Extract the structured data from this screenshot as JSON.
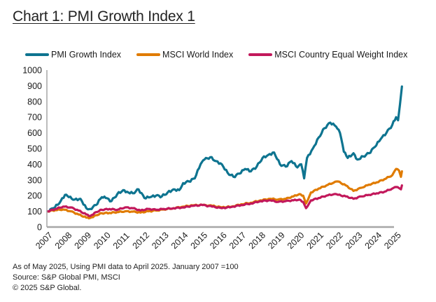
{
  "title": "Chart 1: PMI Growth Index 1",
  "footnotes": [
    "As of May 2025, Using PMI data to April 2025. January 2007 =100",
    "Source: S&P Global PMI, MSCI",
    "© 2025 S&P Global."
  ],
  "chart_data": {
    "type": "line",
    "title": "Chart 1: PMI Growth Index 1",
    "xlabel": "",
    "ylabel": "",
    "ylim": [
      0,
      1000
    ],
    "xlim": [
      2007,
      2025.35
    ],
    "yticks": [
      0,
      100,
      200,
      300,
      400,
      500,
      600,
      700,
      800,
      900,
      1000
    ],
    "ytick_labels": [
      "0",
      "100",
      "200",
      "300",
      "400",
      "500",
      "600",
      "700",
      "800",
      "900",
      "1000"
    ],
    "xticks": [
      2007,
      2008,
      2009,
      2010,
      2011,
      2012,
      2013,
      2014,
      2015,
      2016,
      2017,
      2018,
      2019,
      2020,
      2021,
      2022,
      2023,
      2024,
      2025
    ],
    "xtick_labels": [
      "2007",
      "2008",
      "2009",
      "2010",
      "2011",
      "2012",
      "2013",
      "2014",
      "2015",
      "2016",
      "2017",
      "2018",
      "2019",
      "2020",
      "2021",
      "2022",
      "2023",
      "2024",
      "2025"
    ],
    "grid": false,
    "legend_position": "top",
    "series": [
      {
        "name": "PMI Growth Index",
        "color": "#0e7490",
        "x": [
          2007.0,
          2007.3,
          2007.6,
          2007.9,
          2008.1,
          2008.4,
          2008.7,
          2009.0,
          2009.2,
          2009.5,
          2009.8,
          2010.0,
          2010.3,
          2010.6,
          2010.9,
          2011.1,
          2011.4,
          2011.7,
          2012.0,
          2012.3,
          2012.6,
          2012.9,
          2013.2,
          2013.5,
          2013.8,
          2014.0,
          2014.3,
          2014.6,
          2014.9,
          2015.1,
          2015.4,
          2015.7,
          2016.0,
          2016.3,
          2016.6,
          2016.9,
          2017.2,
          2017.5,
          2017.8,
          2018.1,
          2018.4,
          2018.7,
          2019.0,
          2019.3,
          2019.6,
          2019.9,
          2020.1,
          2020.25,
          2020.4,
          2020.7,
          2021.0,
          2021.3,
          2021.6,
          2021.9,
          2022.1,
          2022.3,
          2022.5,
          2022.8,
          2023.0,
          2023.3,
          2023.6,
          2023.9,
          2024.2,
          2024.5,
          2024.8,
          2025.0,
          2025.1,
          2025.2,
          2025.3
        ],
        "values": [
          100,
          120,
          150,
          205,
          190,
          175,
          180,
          120,
          115,
          140,
          190,
          185,
          165,
          210,
          235,
          225,
          215,
          240,
          185,
          190,
          200,
          195,
          220,
          240,
          235,
          280,
          290,
          310,
          400,
          430,
          445,
          420,
          400,
          345,
          320,
          340,
          370,
          355,
          385,
          440,
          460,
          475,
          400,
          385,
          420,
          380,
          400,
          310,
          440,
          500,
          570,
          630,
          665,
          640,
          600,
          480,
          440,
          470,
          430,
          450,
          470,
          510,
          560,
          600,
          650,
          700,
          680,
          780,
          895
        ]
      },
      {
        "name": "MSCI World Index",
        "color": "#e07b00",
        "x": [
          2007.0,
          2007.4,
          2007.8,
          2008.2,
          2008.6,
          2009.0,
          2009.2,
          2009.5,
          2009.8,
          2010.2,
          2010.6,
          2011.0,
          2011.4,
          2011.8,
          2012.2,
          2012.6,
          2013.0,
          2013.5,
          2014.0,
          2014.5,
          2015.0,
          2015.5,
          2016.0,
          2016.5,
          2017.0,
          2017.5,
          2018.0,
          2018.5,
          2018.9,
          2019.3,
          2019.7,
          2020.0,
          2020.2,
          2020.35,
          2020.6,
          2021.0,
          2021.4,
          2021.8,
          2022.0,
          2022.4,
          2022.8,
          2023.2,
          2023.6,
          2024.0,
          2024.4,
          2024.8,
          2025.0,
          2025.15,
          2025.25,
          2025.3
        ],
        "values": [
          100,
          108,
          112,
          100,
          80,
          60,
          58,
          75,
          88,
          90,
          95,
          100,
          98,
          92,
          100,
          105,
          112,
          120,
          130,
          138,
          140,
          135,
          125,
          130,
          145,
          155,
          170,
          180,
          175,
          180,
          195,
          210,
          200,
          150,
          220,
          245,
          265,
          285,
          290,
          265,
          230,
          250,
          270,
          285,
          305,
          330,
          370,
          360,
          320,
          355
        ]
      },
      {
        "name": "MSCI Country Equal Weight Index",
        "color": "#c2185b",
        "x": [
          2007.0,
          2007.4,
          2007.8,
          2008.2,
          2008.6,
          2009.0,
          2009.2,
          2009.5,
          2009.8,
          2010.2,
          2010.6,
          2011.0,
          2011.4,
          2011.8,
          2012.2,
          2012.6,
          2013.0,
          2013.5,
          2014.0,
          2014.5,
          2015.0,
          2015.5,
          2016.0,
          2016.5,
          2017.0,
          2017.5,
          2018.0,
          2018.5,
          2018.9,
          2019.3,
          2019.7,
          2020.0,
          2020.2,
          2020.35,
          2020.6,
          2021.0,
          2021.4,
          2021.8,
          2022.0,
          2022.4,
          2022.8,
          2023.2,
          2023.6,
          2024.0,
          2024.4,
          2024.8,
          2025.0,
          2025.15,
          2025.25,
          2025.3
        ],
        "values": [
          100,
          115,
          130,
          125,
          105,
          80,
          70,
          95,
          110,
          115,
          110,
          125,
          120,
          105,
          115,
          110,
          115,
          120,
          125,
          135,
          140,
          130,
          120,
          128,
          140,
          150,
          165,
          170,
          160,
          165,
          170,
          175,
          160,
          120,
          170,
          185,
          200,
          210,
          205,
          195,
          180,
          195,
          205,
          215,
          225,
          245,
          255,
          248,
          240,
          265
        ]
      }
    ]
  }
}
